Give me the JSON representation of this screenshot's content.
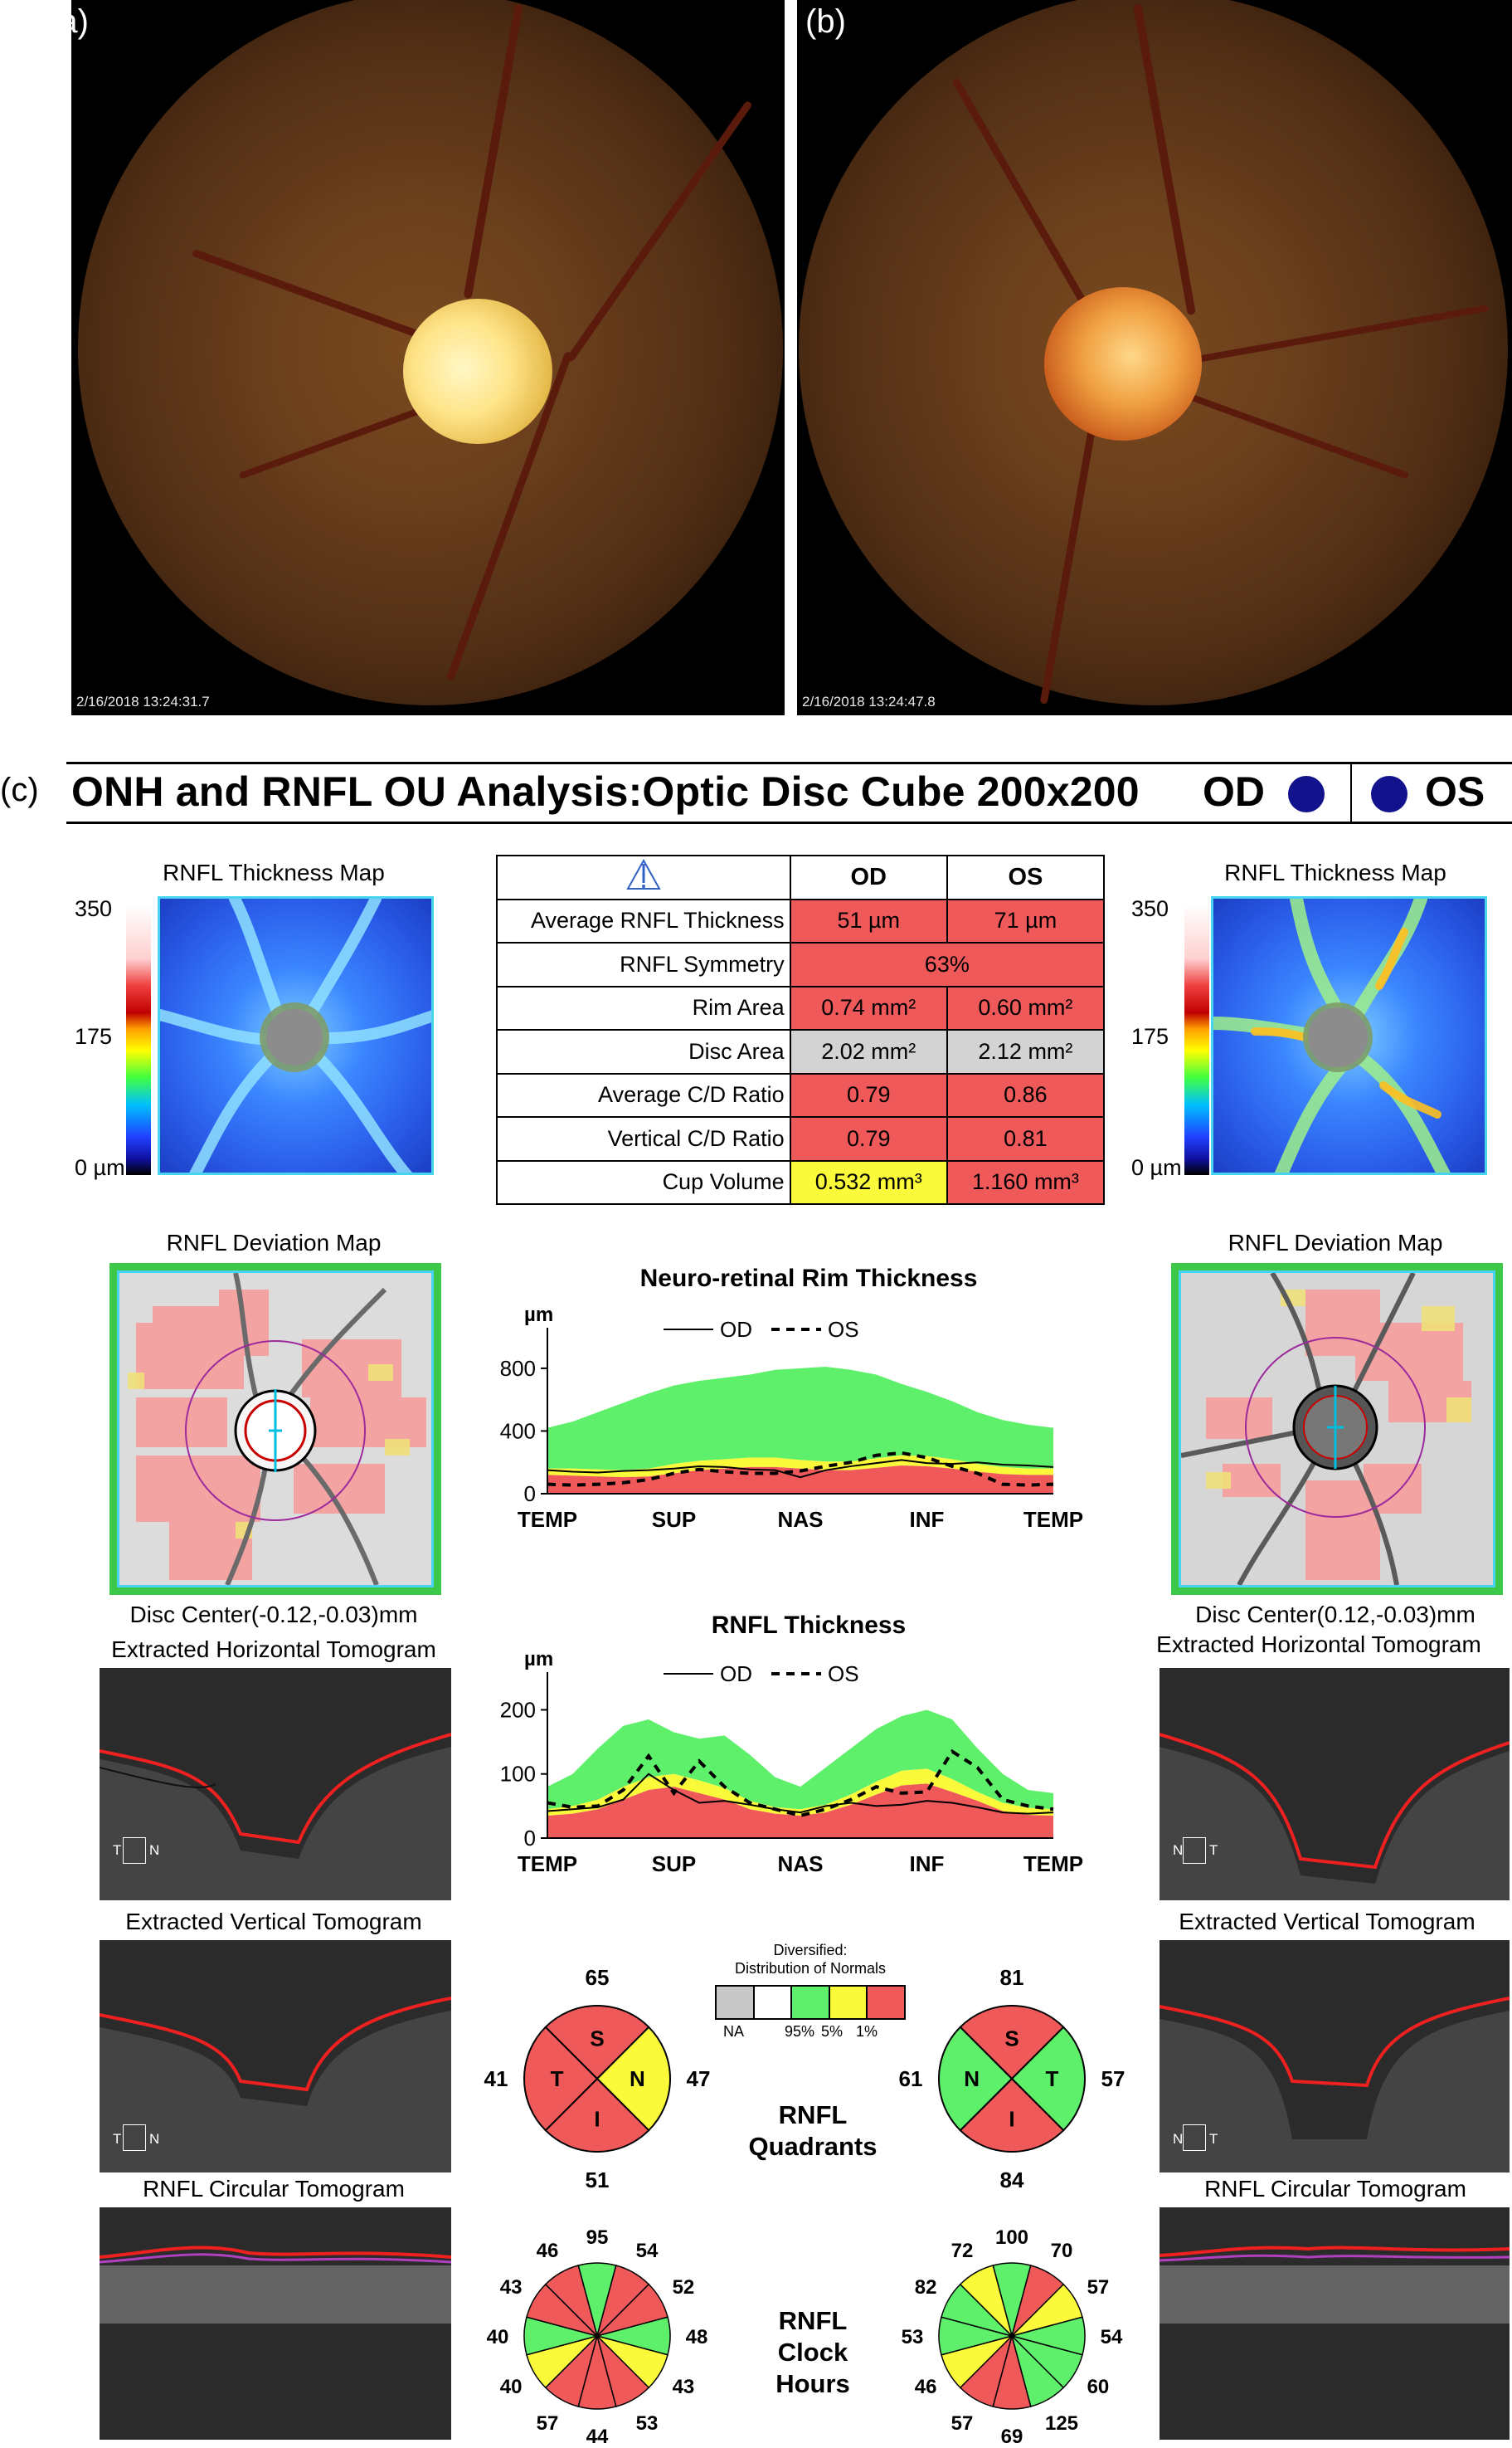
{
  "panels": {
    "a_label": "(a)",
    "b_label": "(b)",
    "c_label": "(c)"
  },
  "fundus": {
    "a_timestamp": "2/16/2018  13:24:31.7",
    "b_timestamp": "2/16/2018  13:24:47.8"
  },
  "header": {
    "title": "ONH and RNFL OU Analysis:Optic Disc Cube 200x200",
    "od": "OD",
    "os": "OS",
    "eye_dot_color": "#12128c"
  },
  "thickness_map": {
    "title": "RNFL Thickness Map",
    "scale_max": "350",
    "scale_mid": "175",
    "scale_min": "0 µm"
  },
  "table": {
    "warning_icon": "warning-triangle-icon",
    "col_od": "OD",
    "col_os": "OS",
    "rows": [
      {
        "label": "Average RNFL Thickness",
        "od": "51 µm",
        "os": "71 µm"
      },
      {
        "label": "RNFL Symmetry",
        "both": "63%"
      },
      {
        "label": "Rim Area",
        "od": "0.74 mm²",
        "os": "0.60 mm²"
      },
      {
        "label": "Disc Area",
        "od": "2.02 mm²",
        "os": "2.12 mm²"
      },
      {
        "label": "Average C/D Ratio",
        "od": "0.79",
        "os": "0.86"
      },
      {
        "label": "Vertical C/D Ratio",
        "od": "0.79",
        "os": "0.81"
      },
      {
        "label": "Cup Volume",
        "od": "0.532 mm³",
        "os": "1.160 mm³"
      }
    ],
    "colors": {
      "red": "#f0595a",
      "gray": "#d3d3d3",
      "yellow": "#fafa3a"
    }
  },
  "deviation_map": {
    "title": "RNFL Deviation Map",
    "od_center": "Disc Center(-0.12,-0.03)mm",
    "os_center": "Disc Center(0.12,-0.03)mm"
  },
  "tomograms": {
    "horizontal": "Extracted Horizontal Tomogram",
    "vertical": "Extracted Vertical Tomogram",
    "circular": "RNFL Circular Tomogram",
    "od_h_orient": [
      "T",
      "N"
    ],
    "os_h_orient": [
      "N",
      "T"
    ],
    "od_v_orient": [
      "T",
      "N"
    ],
    "os_v_orient": [
      "N",
      "T"
    ]
  },
  "chart_data": [
    {
      "type": "area",
      "title": "Neuro-retinal Rim Thickness",
      "ylabel": "µm",
      "ylim": [
        0,
        900
      ],
      "yticks": [
        "800",
        "400",
        "0"
      ],
      "categories": [
        "TEMP",
        "SUP",
        "NAS",
        "INF",
        "TEMP"
      ],
      "legend": [
        "OD",
        "OS"
      ],
      "x": [
        0,
        0.05,
        0.1,
        0.15,
        0.2,
        0.25,
        0.3,
        0.35,
        0.4,
        0.45,
        0.5,
        0.55,
        0.6,
        0.65,
        0.7,
        0.75,
        0.8,
        0.85,
        0.9,
        0.95,
        1
      ],
      "normals": {
        "p1": [
          120,
          115,
          110,
          105,
          110,
          130,
          150,
          160,
          170,
          170,
          160,
          150,
          150,
          165,
          180,
          175,
          160,
          140,
          125,
          120,
          120
        ],
        "p5": [
          160,
          160,
          155,
          150,
          160,
          190,
          210,
          220,
          230,
          230,
          215,
          205,
          205,
          225,
          245,
          240,
          220,
          190,
          170,
          160,
          160
        ],
        "p95": [
          420,
          460,
          520,
          580,
          640,
          690,
          720,
          740,
          760,
          790,
          800,
          810,
          790,
          760,
          700,
          650,
          590,
          520,
          470,
          440,
          420
        ]
      },
      "series": [
        {
          "name": "OD",
          "values": [
            150,
            140,
            135,
            145,
            150,
            160,
            175,
            170,
            155,
            150,
            105,
            150,
            175,
            195,
            215,
            195,
            190,
            200,
            185,
            180,
            170
          ]
        },
        {
          "name": "OS",
          "values": [
            60,
            55,
            60,
            70,
            90,
            130,
            155,
            140,
            130,
            130,
            145,
            175,
            200,
            245,
            260,
            230,
            175,
            130,
            60,
            55,
            60
          ]
        }
      ]
    },
    {
      "type": "area",
      "title": "RNFL Thickness",
      "ylabel": "µm",
      "ylim": [
        0,
        220
      ],
      "yticks": [
        "200",
        "100",
        "0"
      ],
      "categories": [
        "TEMP",
        "SUP",
        "NAS",
        "INF",
        "TEMP"
      ],
      "legend": [
        "OD",
        "OS"
      ],
      "x": [
        0,
        0.05,
        0.1,
        0.15,
        0.2,
        0.25,
        0.3,
        0.35,
        0.4,
        0.45,
        0.5,
        0.55,
        0.6,
        0.65,
        0.7,
        0.75,
        0.8,
        0.85,
        0.9,
        0.95,
        1
      ],
      "normals": {
        "p1": [
          35,
          38,
          45,
          60,
          75,
          80,
          70,
          60,
          45,
          38,
          35,
          40,
          52,
          68,
          82,
          85,
          72,
          58,
          42,
          36,
          35
        ],
        "p5": [
          45,
          50,
          60,
          80,
          95,
          100,
          90,
          78,
          58,
          48,
          45,
          52,
          68,
          88,
          105,
          108,
          92,
          72,
          55,
          47,
          45
        ],
        "p95": [
          80,
          100,
          140,
          175,
          185,
          165,
          155,
          160,
          130,
          95,
          80,
          110,
          140,
          170,
          190,
          200,
          185,
          140,
          100,
          75,
          70
        ]
      },
      "series": [
        {
          "name": "OD",
          "values": [
            42,
            45,
            48,
            60,
            100,
            75,
            55,
            58,
            52,
            45,
            40,
            50,
            55,
            50,
            52,
            58,
            55,
            48,
            40,
            38,
            40
          ]
        },
        {
          "name": "OS",
          "values": [
            55,
            48,
            50,
            75,
            128,
            70,
            120,
            80,
            55,
            45,
            35,
            45,
            60,
            80,
            70,
            72,
            135,
            110,
            60,
            50,
            45
          ]
        }
      ]
    },
    {
      "type": "pie",
      "title": "RNFL Quadrants",
      "eye": "OD",
      "slices": [
        {
          "label": "S",
          "value": 65,
          "color": "#f0595a"
        },
        {
          "label": "N",
          "value": 47,
          "color": "#fafa3a"
        },
        {
          "label": "I",
          "value": 51,
          "color": "#f0595a"
        },
        {
          "label": "T",
          "value": 41,
          "color": "#f0595a"
        }
      ]
    },
    {
      "type": "pie",
      "title": "RNFL Quadrants",
      "eye": "OS",
      "slices": [
        {
          "label": "S",
          "value": 81,
          "color": "#f0595a"
        },
        {
          "label": "T",
          "value": 57,
          "color": "#5ef06a"
        },
        {
          "label": "I",
          "value": 84,
          "color": "#f0595a"
        },
        {
          "label": "N",
          "value": 61,
          "color": "#5ef06a"
        }
      ]
    },
    {
      "type": "pie",
      "title": "RNFL Clock Hours",
      "eye": "OD",
      "hours": [
        {
          "value": 95,
          "color": "#5ef06a"
        },
        {
          "value": 54,
          "color": "#f0595a"
        },
        {
          "value": 52,
          "color": "#f0595a"
        },
        {
          "value": 48,
          "color": "#5ef06a"
        },
        {
          "value": 43,
          "color": "#fafa3a"
        },
        {
          "value": 53,
          "color": "#f0595a"
        },
        {
          "value": 44,
          "color": "#f0595a"
        },
        {
          "value": 57,
          "color": "#f0595a"
        },
        {
          "value": 40,
          "color": "#fafa3a"
        },
        {
          "value": 40,
          "color": "#5ef06a"
        },
        {
          "value": 43,
          "color": "#f0595a"
        },
        {
          "value": 46,
          "color": "#f0595a"
        }
      ]
    },
    {
      "type": "pie",
      "title": "RNFL Clock Hours",
      "eye": "OS",
      "hours": [
        {
          "value": 100,
          "color": "#5ef06a"
        },
        {
          "value": 70,
          "color": "#f0595a"
        },
        {
          "value": 57,
          "color": "#fafa3a"
        },
        {
          "value": 54,
          "color": "#5ef06a"
        },
        {
          "value": 60,
          "color": "#5ef06a"
        },
        {
          "value": 125,
          "color": "#5ef06a"
        },
        {
          "value": 69,
          "color": "#f0595a"
        },
        {
          "value": 57,
          "color": "#f0595a"
        },
        {
          "value": 46,
          "color": "#fafa3a"
        },
        {
          "value": 53,
          "color": "#5ef06a"
        },
        {
          "value": 82,
          "color": "#5ef06a"
        },
        {
          "value": 72,
          "color": "#fafa3a"
        }
      ]
    }
  ],
  "distribution_legend": {
    "title_line1": "Diversified:",
    "title_line2": "Distribution of Normals",
    "labels": [
      "NA",
      "95%",
      "5%",
      "1%"
    ],
    "colors": [
      "#c8c8c8",
      "#ffffff",
      "#5ef06a",
      "#fafa3a",
      "#f0595a"
    ]
  },
  "labels": {
    "rnfl_quadrants_1": "RNFL",
    "rnfl_quadrants_2": "Quadrants",
    "clock_1": "RNFL",
    "clock_2": "Clock",
    "clock_3": "Hours"
  }
}
